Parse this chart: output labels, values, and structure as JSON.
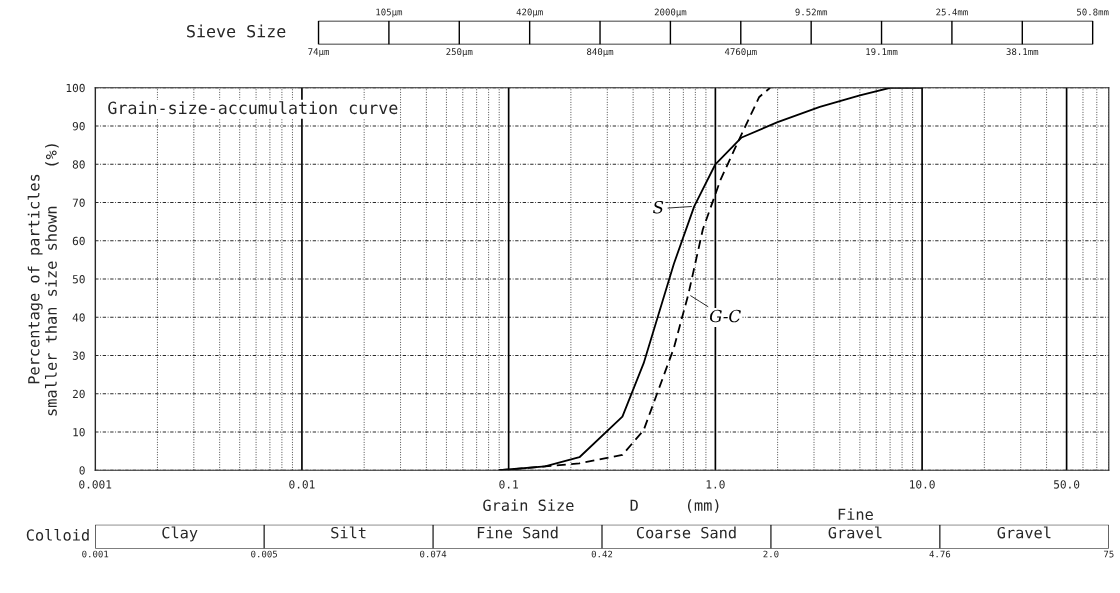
{
  "chart_data": [
    {
      "type": "other",
      "title": "Sieve Size",
      "annotations": [
        "74µm",
        "105µm",
        "250µm",
        "420µm",
        "840µm",
        "2000µm",
        "4760µm",
        "9.52mm",
        "19.1mm",
        "25.4mm",
        "38.1mm",
        "50.8mm"
      ]
    },
    {
      "type": "line",
      "title": "Grain-size-accumulation curve",
      "xlabel": "Grain Size      D     (mm)",
      "ylabel": "Percentage of particles\nsmaller than size shown    (%)",
      "log": "x",
      "grid": true,
      "marker": "none",
      "xlim": [
        0.001,
        80
      ],
      "ylim": [
        0,
        100
      ],
      "xticks": [
        0.001,
        0.01,
        0.1,
        {
          "value": 1,
          "label": "1.0"
        },
        {
          "value": 10,
          "label": "10.0"
        },
        {
          "value": 50,
          "label": "50.0"
        }
      ],
      "yticks": [
        0,
        10,
        20,
        30,
        40,
        50,
        60,
        70,
        80,
        90,
        100
      ],
      "series": [
        {
          "name": "S",
          "color": "#000000",
          "line_style": "solid",
          "x": [
            0.09,
            0.15,
            0.22,
            0.355,
            0.45,
            0.63,
            0.79,
            1.0,
            1.34,
            2.0,
            3.2,
            5.0,
            7.0,
            10.0
          ],
          "values": [
            0,
            1,
            3.4,
            14,
            28,
            54,
            69,
            80,
            87,
            91,
            95,
            98,
            100,
            100
          ]
        },
        {
          "name": "G-C",
          "color": "#000000",
          "line_style": "dashed",
          "x": [
            0.09,
            0.15,
            0.22,
            0.355,
            0.45,
            0.63,
            0.74,
            0.87,
            1.06,
            1.29,
            1.63,
            1.84
          ],
          "values": [
            0,
            1,
            1.8,
            4,
            10.5,
            32,
            46,
            63,
            76,
            86,
            97.6,
            100
          ]
        }
      ]
    },
    {
      "type": "other",
      "annotations": [
        "Colloid",
        "0.001",
        "Clay",
        "0.005",
        "Silt",
        "0.074",
        "Fine Sand",
        "0.42",
        "Coarse Sand",
        "2.0",
        "Fine\nGravel",
        "4.76",
        "Gravel",
        "75"
      ]
    }
  ]
}
